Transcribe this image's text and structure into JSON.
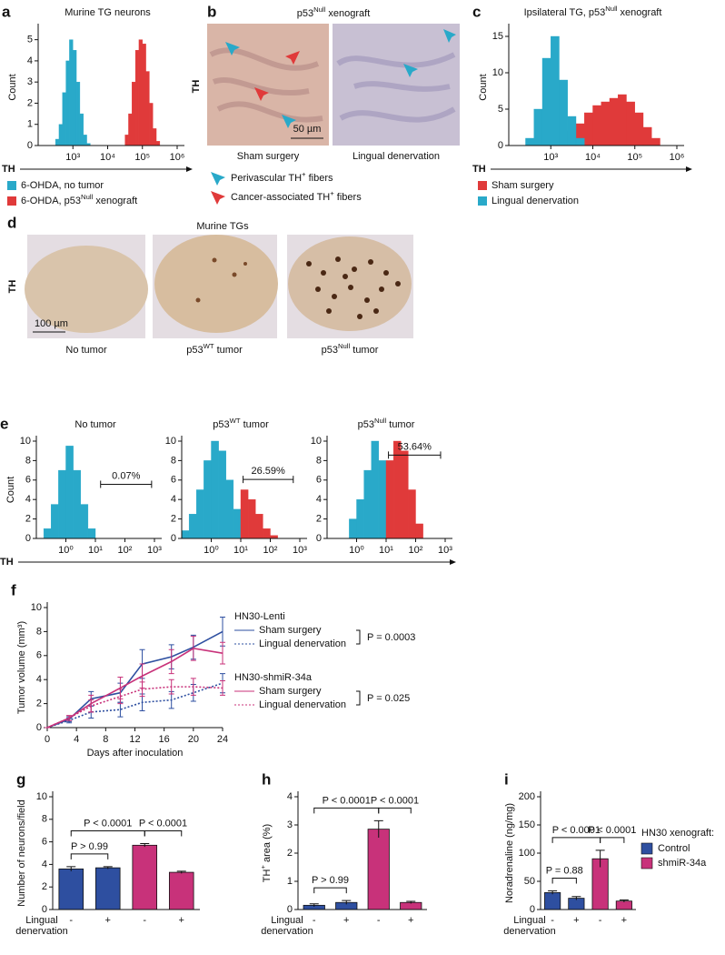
{
  "figure_b": {
    "panel": "b",
    "title": [
      "p53",
      "Null",
      " xenograft"
    ],
    "stain": "TH",
    "scale_bar": "50 µm",
    "captions": [
      "Sham surgery",
      "Lingual denervation"
    ],
    "legend": [
      [
        "Perivascular TH",
        "+",
        " fibers"
      ],
      [
        "Cancer-associated TH",
        "+",
        " fibers"
      ]
    ]
  },
  "figure_d": {
    "panel": "d",
    "title": "Murine TGs",
    "stain": "TH",
    "scale_bar": "100 µm",
    "captions": [
      "No tumor",
      [
        "p53",
        "WT",
        " tumor"
      ],
      [
        "p53",
        "Null",
        " tumor"
      ]
    ]
  },
  "chart_data": [
    {
      "type": "histogram",
      "panel": "a",
      "title": "Murine TG neurons",
      "ylabel": "Count",
      "xlabel": "TH",
      "xscale": "log",
      "xlim": [
        100,
        1000000
      ],
      "xticks": [
        {
          "value": 1000,
          "label": "10³"
        },
        {
          "value": 10000,
          "label": "10⁴"
        },
        {
          "value": 100000,
          "label": "10⁵"
        },
        {
          "value": 1000000,
          "label": "10⁶"
        }
      ],
      "ylim": [
        0,
        5.5
      ],
      "yticks": [
        0,
        1,
        2,
        3,
        4,
        5
      ],
      "series": [
        {
          "name": "6-OHDA, no tumor",
          "color": "#29a9c9",
          "bins": [
            316,
            398,
            501,
            631,
            794,
            1000,
            1259,
            1585,
            1995,
            2512,
            3162
          ],
          "values": [
            0.3,
            1,
            2.5,
            4,
            5,
            4.5,
            3,
            1.5,
            0.5,
            0.1
          ]
        },
        {
          "name": [
            "6-OHDA, p53",
            "Null",
            " xenograft"
          ],
          "color": "#e03a3a",
          "bins": [
            31623,
            39811,
            50119,
            63096,
            79433,
            100000,
            125893,
            158489,
            199526,
            251189,
            316228
          ],
          "values": [
            0.5,
            1.5,
            3,
            4.5,
            5,
            4.8,
            3.5,
            2,
            0.8,
            0.2
          ]
        }
      ]
    },
    {
      "type": "histogram",
      "panel": "c",
      "title": [
        "Ipsilateral TG, p53",
        "Null",
        " xenograft"
      ],
      "ylabel": "Count",
      "xlabel": "TH",
      "xscale": "log",
      "xlim": [
        100,
        1000000
      ],
      "xticks": [
        {
          "value": 1000,
          "label": "10³"
        },
        {
          "value": 10000,
          "label": "10⁴"
        },
        {
          "value": 100000,
          "label": "10⁵"
        },
        {
          "value": 1000000,
          "label": "10⁶"
        }
      ],
      "ylim": [
        0,
        16
      ],
      "yticks": [
        0,
        5,
        10,
        15
      ],
      "series": [
        {
          "name": "Sham surgery",
          "color": "#e03a3a",
          "bins": [
            1585,
            2512,
            3981,
            6310,
            10000,
            15849,
            25119,
            39811,
            63096,
            100000,
            158489,
            251189,
            398107
          ],
          "values": [
            1,
            2,
            3,
            4.5,
            5.5,
            6,
            6.5,
            7,
            6,
            4.5,
            2.5,
            1
          ]
        },
        {
          "name": "Lingual denervation",
          "color": "#29a9c9",
          "bins": [
            251,
            398,
            631,
            1000,
            1585,
            2512,
            3981,
            6310
          ],
          "values": [
            1,
            5,
            12,
            15,
            9,
            4,
            1
          ]
        }
      ]
    },
    {
      "type": "histogram",
      "panel": "e",
      "title": "No tumor",
      "ylabel": "Count",
      "xlabel": "TH",
      "xscale": "log",
      "xlim": [
        0.1,
        1000
      ],
      "xticks": [
        {
          "value": 1,
          "label": "10⁰"
        },
        {
          "value": 10,
          "label": "10¹"
        },
        {
          "value": 100,
          "label": "10²"
        },
        {
          "value": 1000,
          "label": "10³"
        }
      ],
      "ylim": [
        0,
        10
      ],
      "yticks": [
        0,
        2,
        4,
        6,
        8,
        10
      ],
      "gate": {
        "label": "0.07%",
        "range": [
          15,
          800
        ]
      },
      "series": [
        {
          "color": "#29a9c9",
          "bins": [
            0.178,
            0.316,
            0.562,
            1,
            1.778,
            3.162,
            5.623,
            10
          ],
          "values": [
            1,
            3.5,
            7,
            9.5,
            7,
            3.5,
            1
          ]
        }
      ]
    },
    {
      "type": "histogram",
      "title": [
        "p53",
        "WT",
        " tumor"
      ],
      "xscale": "log",
      "xlim": [
        0.1,
        1000
      ],
      "xticks": [
        {
          "value": 1,
          "label": "10⁰"
        },
        {
          "value": 10,
          "label": "10¹"
        },
        {
          "value": 100,
          "label": "10²"
        },
        {
          "value": 1000,
          "label": "10³"
        }
      ],
      "ylim": [
        0,
        10
      ],
      "yticks": [
        0,
        2,
        4,
        6,
        8,
        10
      ],
      "gate": {
        "label": "26.59%",
        "range": [
          12,
          600
        ]
      },
      "series": [
        {
          "color": "#29a9c9",
          "bins": [
            0.1,
            0.178,
            0.316,
            0.562,
            1,
            1.778,
            3.162,
            5.623,
            10
          ],
          "values": [
            0.8,
            2.5,
            5,
            8,
            10,
            9,
            6,
            3
          ]
        },
        {
          "color": "#e03a3a",
          "bins": [
            10,
            17.78,
            31.62,
            56.23,
            100,
            177.8
          ],
          "values": [
            5,
            4,
            2.5,
            1,
            0.3
          ]
        }
      ]
    },
    {
      "type": "histogram",
      "title": [
        "p53",
        "Null",
        " tumor"
      ],
      "xscale": "log",
      "xlim": [
        0.1,
        1000
      ],
      "xticks": [
        {
          "value": 1,
          "label": "10⁰"
        },
        {
          "value": 10,
          "label": "10¹"
        },
        {
          "value": 100,
          "label": "10²"
        },
        {
          "value": 1000,
          "label": "10³"
        }
      ],
      "ylim": [
        0,
        10
      ],
      "yticks": [
        0,
        2,
        4,
        6,
        8,
        10
      ],
      "gate": {
        "label": "53.64%",
        "range": [
          12,
          700
        ]
      },
      "series": [
        {
          "color": "#29a9c9",
          "bins": [
            0.562,
            1,
            1.778,
            3.162,
            5.623,
            10
          ],
          "values": [
            2,
            4,
            7,
            10,
            8
          ]
        },
        {
          "color": "#e03a3a",
          "bins": [
            10,
            17.78,
            31.62,
            56.23,
            100,
            177.8
          ],
          "values": [
            8,
            10,
            9,
            5,
            1.5
          ]
        }
      ]
    },
    {
      "type": "line",
      "panel": "f",
      "ylabel": "Tumor volume (mm³)",
      "xlabel": "Days after inoculation",
      "xlim": [
        0,
        24
      ],
      "xticks": [
        0,
        4,
        8,
        12,
        16,
        20,
        24
      ],
      "ylim": [
        0,
        10
      ],
      "yticks": [
        0,
        2,
        4,
        6,
        8,
        10
      ],
      "x": [
        0,
        3,
        6,
        10,
        13,
        17,
        20,
        24
      ],
      "groups": [
        {
          "name": "HN30-Lenti",
          "p_value": "P = 0.0003",
          "series": [
            {
              "name": "Sham surgery",
              "color": "#2e4fa0",
              "style": "solid",
              "values": [
                0,
                0.7,
                2.4,
                2.9,
                5.3,
                5.9,
                6.7,
                8.0
              ],
              "errors": [
                0,
                0.2,
                0.6,
                0.8,
                1.2,
                1.0,
                1.0,
                1.2
              ]
            },
            {
              "name": "Lingual denervation",
              "color": "#2e4fa0",
              "style": "dotted",
              "values": [
                0,
                0.6,
                1.3,
                1.5,
                2.1,
                2.3,
                2.9,
                3.7
              ],
              "errors": [
                0,
                0.2,
                0.5,
                0.6,
                0.7,
                0.7,
                0.7,
                0.8
              ]
            }
          ]
        },
        {
          "name": "HN30-shmiR-34a",
          "p_value": "P = 0.025",
          "series": [
            {
              "name": "Sham surgery",
              "color": "#c8327a",
              "style": "solid",
              "values": [
                0,
                0.8,
                2.0,
                3.3,
                4.3,
                5.5,
                6.6,
                6.2
              ],
              "errors": [
                0,
                0.2,
                0.7,
                0.9,
                1.0,
                1.0,
                1.0,
                0.9
              ]
            },
            {
              "name": "Lingual denervation",
              "color": "#c8327a",
              "style": "dotted",
              "values": [
                0,
                0.8,
                1.8,
                2.6,
                3.2,
                3.4,
                3.4,
                3.3
              ],
              "errors": [
                0,
                0.2,
                0.5,
                0.6,
                0.6,
                0.6,
                0.7,
                0.6
              ]
            }
          ]
        }
      ]
    },
    {
      "type": "bar",
      "panel": "g",
      "ylabel": "Number of neurons/field",
      "xlabel": [
        "Lingual",
        "denervation"
      ],
      "categories": [
        "-",
        "+",
        "-",
        "+"
      ],
      "colors": [
        "#2e4fa0",
        "#2e4fa0",
        "#c8327a",
        "#c8327a"
      ],
      "values": [
        3.6,
        3.7,
        5.7,
        3.3
      ],
      "errors": [
        0.2,
        0.1,
        0.15,
        0.1
      ],
      "ylim": [
        0,
        10
      ],
      "yticks": [
        0,
        2,
        4,
        6,
        8,
        10
      ],
      "comparisons": [
        "P > 0.99",
        "P < 0.0001",
        "P < 0.0001"
      ]
    },
    {
      "type": "bar",
      "panel": "h",
      "ylabel": [
        "TH",
        "+",
        " area (%)"
      ],
      "xlabel": [
        "Lingual",
        "denervation"
      ],
      "categories": [
        "-",
        "+",
        "-",
        "+"
      ],
      "colors": [
        "#2e4fa0",
        "#2e4fa0",
        "#c8327a",
        "#c8327a"
      ],
      "values": [
        0.15,
        0.25,
        2.85,
        0.25
      ],
      "errors": [
        0.05,
        0.07,
        0.3,
        0.04
      ],
      "ylim": [
        0,
        4
      ],
      "yticks": [
        0,
        1,
        2,
        3,
        4
      ],
      "comparisons": [
        "P > 0.99",
        "P < 0.0001",
        "P < 0.0001"
      ]
    },
    {
      "type": "bar",
      "panel": "i",
      "ylabel": "Noradrenaline (ng/mg)",
      "xlabel": [
        "Lingual",
        "denervation"
      ],
      "categories": [
        "-",
        "+",
        "-",
        "+"
      ],
      "colors": [
        "#2e4fa0",
        "#2e4fa0",
        "#c8327a",
        "#c8327a"
      ],
      "values": [
        30,
        20,
        90,
        15
      ],
      "errors": [
        3,
        3,
        15,
        2
      ],
      "ylim": [
        0,
        200
      ],
      "yticks": [
        0,
        50,
        100,
        150,
        200
      ],
      "comparisons": [
        "P = 0.88",
        "P < 0.0001",
        "P < 0.0001"
      ],
      "legend": {
        "title": "HN30 xenograft:",
        "entries": [
          {
            "name": "Control",
            "color": "#2e4fa0"
          },
          {
            "name": "shmiR-34a",
            "color": "#c8327a"
          }
        ]
      }
    }
  ]
}
